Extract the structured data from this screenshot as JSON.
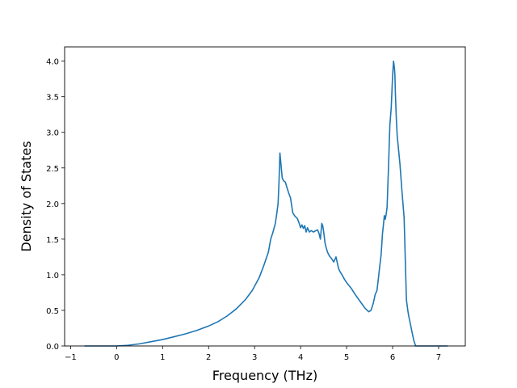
{
  "chart_data": {
    "type": "line",
    "xlabel": "Frequency (THz)",
    "ylabel": "Density of States",
    "xlim": [
      -1.13,
      7.58
    ],
    "ylim": [
      0,
      4.2
    ],
    "xticks": [
      -1,
      0,
      1,
      2,
      3,
      4,
      5,
      6,
      7
    ],
    "xtick_labels": [
      "−1",
      "0",
      "1",
      "2",
      "3",
      "4",
      "5",
      "6",
      "7"
    ],
    "yticks": [
      0.0,
      0.5,
      1.0,
      1.5,
      2.0,
      2.5,
      3.0,
      3.5,
      4.0
    ],
    "ytick_labels": [
      "0.0",
      "0.5",
      "1.0",
      "1.5",
      "2.0",
      "2.5",
      "3.0",
      "3.5",
      "4.0"
    ],
    "grid": false,
    "line_color": "#1f77b4",
    "series": [
      {
        "x": [
          -0.7,
          -0.35,
          0.0,
          0.25,
          0.5,
          0.75,
          1.0,
          1.25,
          1.5,
          1.75,
          2.0,
          2.2,
          2.4,
          2.6,
          2.8,
          2.95,
          3.1,
          3.2,
          3.3,
          3.35,
          3.4,
          3.45,
          3.48,
          3.51,
          3.53,
          3.55,
          3.58,
          3.6,
          3.63,
          3.67,
          3.7,
          3.74,
          3.78,
          3.83,
          3.88,
          3.93,
          3.97,
          4.0,
          4.03,
          4.06,
          4.09,
          4.12,
          4.15,
          4.19,
          4.23,
          4.28,
          4.33,
          4.37,
          4.4,
          4.43,
          4.46,
          4.48,
          4.5,
          4.53,
          4.56,
          4.59,
          4.63,
          4.67,
          4.72,
          4.77,
          4.81,
          4.83,
          4.86,
          4.9,
          4.95,
          5.0,
          5.05,
          5.1,
          5.2,
          5.3,
          5.4,
          5.48,
          5.53,
          5.58,
          5.62,
          5.66,
          5.7,
          5.72,
          5.75,
          5.78,
          5.8,
          5.82,
          5.84,
          5.86,
          5.88,
          5.91,
          5.94,
          5.97,
          6.0,
          6.02,
          6.04,
          6.05,
          6.06,
          6.08,
          6.1,
          6.13,
          6.16,
          6.2,
          6.25,
          6.3,
          6.33,
          6.35,
          6.38,
          6.42,
          6.46,
          6.5,
          6.52,
          6.55,
          6.57,
          6.62,
          6.7,
          6.85,
          7.0,
          7.2
        ],
        "y": [
          0.0,
          0.0,
          0.0,
          0.01,
          0.03,
          0.06,
          0.09,
          0.13,
          0.17,
          0.22,
          0.28,
          0.34,
          0.42,
          0.52,
          0.65,
          0.78,
          0.96,
          1.13,
          1.32,
          1.5,
          1.6,
          1.72,
          1.85,
          2.0,
          2.3,
          2.71,
          2.5,
          2.36,
          2.32,
          2.3,
          2.23,
          2.15,
          2.08,
          1.87,
          1.82,
          1.79,
          1.72,
          1.66,
          1.7,
          1.65,
          1.69,
          1.6,
          1.66,
          1.6,
          1.62,
          1.6,
          1.62,
          1.63,
          1.58,
          1.5,
          1.72,
          1.69,
          1.61,
          1.45,
          1.37,
          1.31,
          1.26,
          1.23,
          1.18,
          1.25,
          1.13,
          1.08,
          1.04,
          1.0,
          0.94,
          0.89,
          0.85,
          0.81,
          0.71,
          0.62,
          0.53,
          0.48,
          0.5,
          0.6,
          0.72,
          0.78,
          1.0,
          1.12,
          1.28,
          1.58,
          1.7,
          1.83,
          1.78,
          1.85,
          1.95,
          2.5,
          3.1,
          3.35,
          3.8,
          4.0,
          3.9,
          3.8,
          3.55,
          3.2,
          2.95,
          2.75,
          2.55,
          2.2,
          1.8,
          0.65,
          0.5,
          0.42,
          0.33,
          0.2,
          0.08,
          0.0,
          0.0,
          0.0,
          0.0,
          0.0,
          0.0,
          0.0,
          0.0,
          0.0
        ]
      }
    ]
  }
}
